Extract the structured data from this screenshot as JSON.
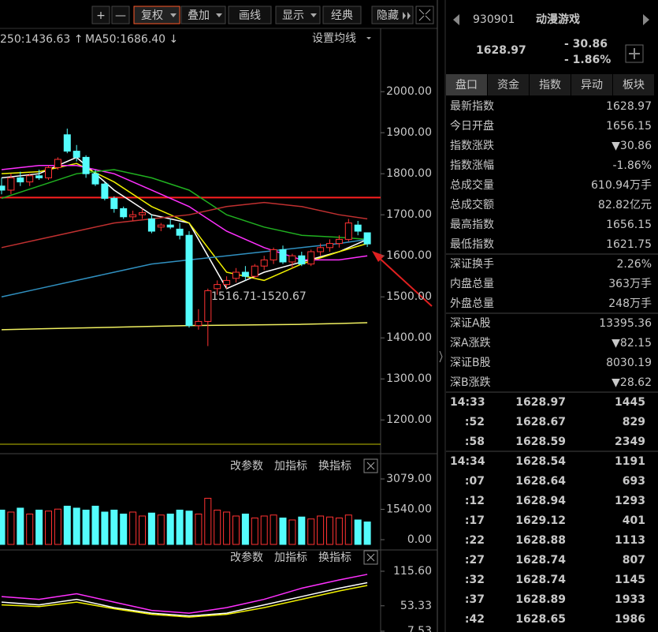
{
  "toolbar": {
    "buttons": [
      "+",
      "—",
      "复权",
      "叠加",
      "画线",
      "显示",
      "经典",
      "隐藏"
    ]
  },
  "chart_data": [
    {
      "type": "candlestick",
      "legend_labels": [
        "250:1436.63 ↑",
        "MA50:1686.40 ↓"
      ],
      "settings_label": "设置均线",
      "annotation": "1516.71-1520.67",
      "ylim": [
        1137,
        2108
      ],
      "yticks": [
        {
          "value": 2000,
          "label": "2000.00"
        },
        {
          "value": 1900,
          "label": "1900.00"
        },
        {
          "value": 1800,
          "label": "1800.00"
        },
        {
          "value": 1700,
          "label": "1700.00"
        },
        {
          "value": 1600,
          "label": "1600.00"
        },
        {
          "value": 1500,
          "label": "1500.00"
        },
        {
          "value": 1400,
          "label": "1400.00"
        },
        {
          "value": 1300,
          "label": "1300.00"
        },
        {
          "value": 1200,
          "label": "1200.00"
        }
      ],
      "up_color": "#ff3232",
      "down_color": "#54fcfc",
      "open": [
        1770,
        1760,
        1790,
        1780,
        1795,
        1790,
        1815,
        1895,
        1855,
        1840,
        1800,
        1775,
        1740,
        1715,
        1695,
        1700,
        1690,
        1670,
        1675,
        1665,
        1650,
        1430,
        1440,
        1520,
        1530,
        1545,
        1560,
        1550,
        1575,
        1590,
        1615,
        1585,
        1600,
        1580,
        1610,
        1620,
        1630,
        1640,
        1675,
        1656.15
      ],
      "high": [
        1790,
        1800,
        1805,
        1800,
        1810,
        1820,
        1840,
        1910,
        1870,
        1845,
        1810,
        1780,
        1745,
        1720,
        1710,
        1715,
        1700,
        1680,
        1690,
        1680,
        1660,
        1470,
        1520,
        1540,
        1550,
        1570,
        1575,
        1580,
        1600,
        1620,
        1625,
        1605,
        1610,
        1615,
        1630,
        1640,
        1650,
        1690,
        1685,
        1656.15
      ],
      "low": [
        1750,
        1750,
        1770,
        1770,
        1785,
        1785,
        1810,
        1850,
        1830,
        1790,
        1770,
        1735,
        1705,
        1690,
        1685,
        1690,
        1655,
        1660,
        1665,
        1640,
        1425,
        1420,
        1380,
        1505,
        1520,
        1535,
        1540,
        1545,
        1565,
        1580,
        1580,
        1570,
        1575,
        1575,
        1600,
        1610,
        1620,
        1635,
        1650,
        1621.75
      ],
      "close": [
        1760,
        1790,
        1780,
        1795,
        1790,
        1815,
        1835,
        1855,
        1840,
        1800,
        1775,
        1740,
        1715,
        1695,
        1700,
        1705,
        1660,
        1675,
        1670,
        1650,
        1430,
        1440,
        1515,
        1530,
        1540,
        1560,
        1550,
        1575,
        1590,
        1615,
        1585,
        1600,
        1580,
        1610,
        1620,
        1630,
        1640,
        1680,
        1660,
        1628.97
      ],
      "line_x": [
        0,
        4,
        8,
        12,
        16,
        20,
        24,
        28,
        32,
        36,
        39
      ],
      "lines": [
        {
          "color": "#ffffff",
          "values": [
            1790,
            1800,
            1840,
            1760,
            1700,
            1680,
            1520,
            1560,
            1585,
            1610,
            1640
          ]
        },
        {
          "color": "#f0f000",
          "values": [
            1800,
            1805,
            1825,
            1780,
            1720,
            1680,
            1560,
            1540,
            1580,
            1610,
            1630
          ]
        },
        {
          "color": "#ff30ff",
          "values": [
            1810,
            1820,
            1820,
            1800,
            1760,
            1720,
            1660,
            1620,
            1590,
            1590,
            1600
          ]
        },
        {
          "color": "#20b020",
          "values": [
            1740,
            1770,
            1800,
            1810,
            1790,
            1760,
            1700,
            1670,
            1650,
            1645,
            1640
          ]
        },
        {
          "color": "#c03030",
          "values": [
            1620,
            1640,
            1660,
            1680,
            1690,
            1700,
            1720,
            1730,
            1720,
            1700,
            1690
          ]
        },
        {
          "color": "#3090c0",
          "values": [
            1500,
            1520,
            1540,
            1560,
            1580,
            1590,
            1600,
            1610,
            1620,
            1630,
            1640
          ]
        },
        {
          "color": "#f0f060",
          "values": [
            1420,
            1422,
            1424,
            1426,
            1428,
            1430,
            1431,
            1432,
            1433,
            1435,
            1437
          ]
        }
      ],
      "hline": {
        "value": 1742,
        "color": "#ff2020"
      }
    },
    {
      "type": "bar",
      "buttons": [
        "改参数",
        "加指标",
        "换指标"
      ],
      "ylim": [
        0,
        3079
      ],
      "yticks": [
        {
          "value": 3079,
          "label": "3079.00"
        },
        {
          "value": 1540,
          "label": "1540.00"
        },
        {
          "value": 0,
          "label": "0.00"
        }
      ],
      "values": [
        1500,
        1400,
        1600,
        1300,
        1500,
        1450,
        1550,
        1700,
        1600,
        1500,
        1700,
        1400,
        1500,
        1300,
        1400,
        1200,
        1350,
        1250,
        1300,
        1500,
        1450,
        1300,
        2100,
        1500,
        1400,
        1200,
        1300,
        1100,
        1200,
        1250,
        1100,
        1000,
        1150,
        1050,
        1200,
        1150,
        1100,
        1250,
        1000,
        900
      ]
    },
    {
      "type": "line",
      "buttons": [
        "改参数",
        "加指标",
        "换指标"
      ],
      "ylim": [
        7.53,
        115.6
      ],
      "yticks": [
        {
          "value": 115.6,
          "label": "115.60"
        },
        {
          "value": 53.33,
          "label": "53.33"
        },
        {
          "value": 7.53,
          "label": "7.53"
        }
      ],
      "x": [
        0,
        4,
        8,
        12,
        16,
        20,
        24,
        28,
        32,
        36,
        39
      ],
      "series": [
        {
          "color": "#ffffff",
          "values": [
            60,
            55,
            65,
            50,
            40,
            35,
            40,
            55,
            70,
            85,
            95
          ]
        },
        {
          "color": "#f0f000",
          "values": [
            55,
            52,
            60,
            48,
            38,
            33,
            38,
            50,
            65,
            80,
            90
          ]
        },
        {
          "color": "#ff30ff",
          "values": [
            70,
            65,
            75,
            60,
            45,
            40,
            50,
            65,
            85,
            100,
            110
          ]
        }
      ]
    }
  ],
  "quote": {
    "code": "930901",
    "name": "动漫游戏",
    "price": "1628.97",
    "change": "- 30.86",
    "pct": "- 1.86%",
    "tabs": [
      "盘口",
      "资金",
      "指数",
      "异动",
      "板块"
    ],
    "rows": [
      [
        "最新指数",
        "1628.97",
        "#3ccf5a"
      ],
      [
        "今日开盘",
        "1656.15",
        "#3ccf5a"
      ],
      [
        "指数涨跌",
        "▼30.86",
        "#3ccf5a"
      ],
      [
        "指数涨幅",
        "-1.86%",
        "#3ccf5a"
      ],
      [
        "总成交量",
        "610.94万手",
        "#e0e0e0"
      ],
      [
        "总成交额",
        "82.82亿元",
        "#40d0f0"
      ],
      [
        "最高指数",
        "1656.15",
        "#3ccf5a"
      ],
      [
        "最低指数",
        "1621.75",
        "#3ccf5a"
      ],
      [
        "深证换手",
        "2.26%",
        "#e0e0e0"
      ],
      [
        "内盘总量",
        "363万手",
        "#3ccf5a"
      ],
      [
        "外盘总量",
        "248万手",
        "#ff4040"
      ],
      [
        "深证A股",
        "13395.36",
        "#3ccf5a"
      ],
      [
        "深A涨跌",
        "▼82.15",
        "#3ccf5a"
      ],
      [
        "深证B股",
        "8030.19",
        "#3ccf5a"
      ],
      [
        "深B涨跌",
        "▼28.62",
        "#3ccf5a"
      ]
    ],
    "ticks": [
      [
        "14:33",
        "1628.97",
        "1445",
        "#ff4040"
      ],
      [
        ":52",
        "1628.67",
        "829",
        "#3ccf5a"
      ],
      [
        ":58",
        "1628.59",
        "2349",
        "#3ccf5a"
      ],
      [
        "14:34",
        "1628.54",
        "1191",
        "#3ccf5a"
      ],
      [
        ":07",
        "1628.64",
        "693",
        "#ff4040"
      ],
      [
        ":12",
        "1628.94",
        "1293",
        "#ff4040"
      ],
      [
        ":17",
        "1629.12",
        "401",
        "#ff4040"
      ],
      [
        ":22",
        "1628.88",
        "1113",
        "#3ccf5a"
      ],
      [
        ":27",
        "1628.74",
        "807",
        "#3ccf5a"
      ],
      [
        ":32",
        "1628.74",
        "1145",
        "#3ccf5a"
      ],
      [
        ":37",
        "1628.89",
        "1933",
        "#ff4040"
      ],
      [
        ":42",
        "1628.65",
        "1986",
        "#3ccf5a"
      ]
    ]
  }
}
